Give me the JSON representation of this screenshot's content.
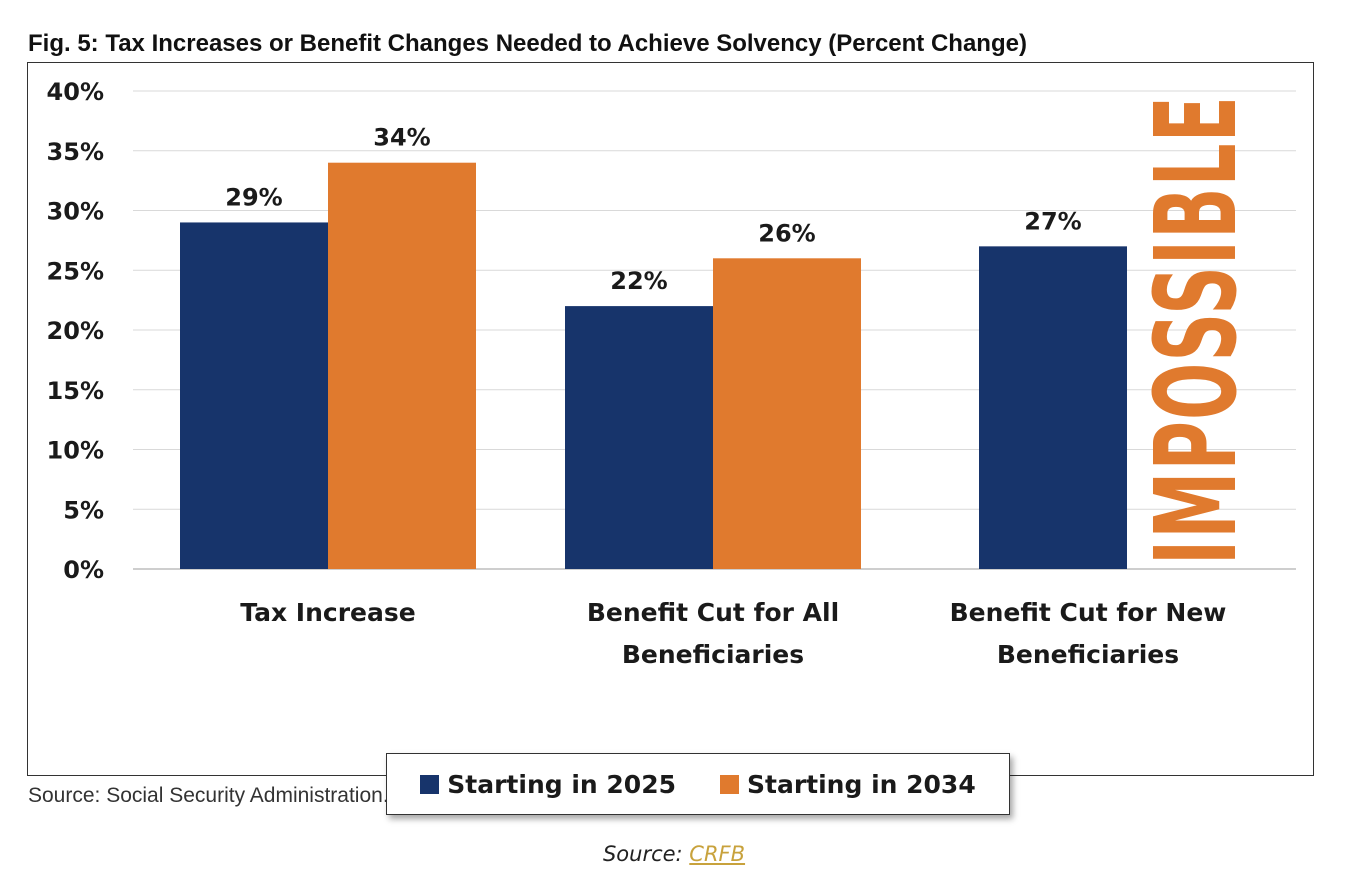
{
  "chart_data": {
    "type": "bar",
    "title": "Fig. 5: Tax Increases or Benefit Changes Needed to Achieve Solvency (Percent Change)",
    "categories": [
      [
        "Tax Increase"
      ],
      [
        "Benefit Cut for All",
        "Beneficiaries"
      ],
      [
        "Benefit Cut for New",
        "Beneficiaries"
      ]
    ],
    "series": [
      {
        "name": "Starting in 2025",
        "color": "#17346b",
        "values": [
          29,
          22,
          27
        ],
        "labels": [
          "29%",
          "22%",
          "27%"
        ]
      },
      {
        "name": "Starting in 2034",
        "color": "#e07a2e",
        "values": [
          34,
          26,
          null
        ],
        "labels": [
          "34%",
          "26%",
          ""
        ]
      }
    ],
    "ylim": [
      0,
      40
    ],
    "yticks": [
      "0%",
      "5%",
      "10%",
      "15%",
      "20%",
      "25%",
      "30%",
      "35%",
      "40%"
    ],
    "grid": true,
    "legend_position": "bottom",
    "annotation": "IMPOSSIBLE"
  },
  "source_note": "Source: Social Security Administration.",
  "caption": {
    "prefix": "Source: ",
    "link_text": "CRFB"
  }
}
